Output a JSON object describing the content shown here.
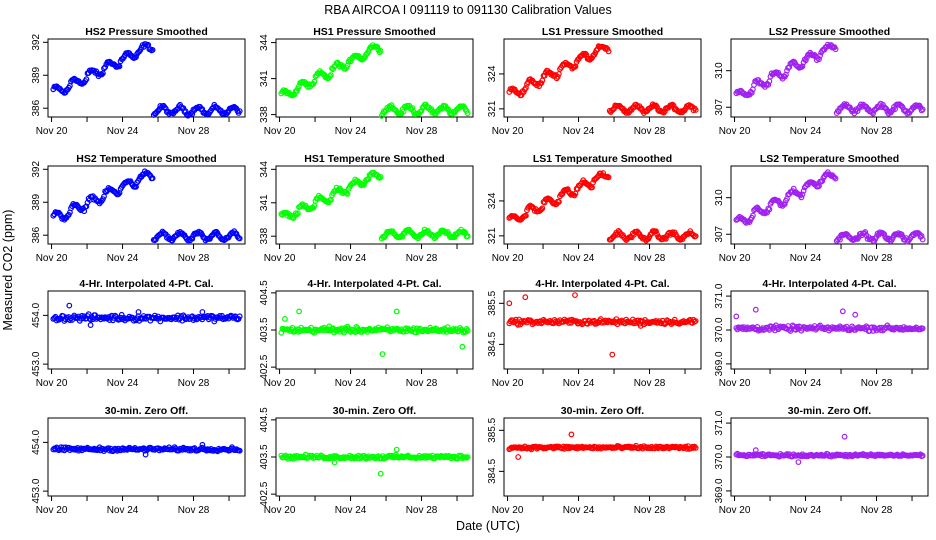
{
  "figure": {
    "title": "RBA   AIRCOA I    091119 to 091130    Calibration Values",
    "xlabel": "Date (UTC)",
    "ylabel": "Measured CO2 (ppm)"
  },
  "chart_data": [
    {
      "type": "scatter",
      "title": "HS2 Pressure Smoothed",
      "color": "#0000ff",
      "shape": "step",
      "ylim": [
        385.2,
        392.3
      ],
      "yticks": [
        386,
        389,
        392
      ],
      "ytick_labels": [
        "386",
        "389",
        "392"
      ],
      "xlim": [
        19.8,
        30.9
      ],
      "xticks": [
        20,
        24,
        28
      ],
      "xtick_labels": [
        "Nov 20",
        "Nov 24",
        "Nov 28"
      ],
      "series": [
        {
          "name": "HS2 Pressure Smoothed",
          "x_range": [
            20.1,
            30.6
          ],
          "level_start": 387.5,
          "level_end": 391.6,
          "rise_end": 25.7,
          "level_after": 385.8,
          "amplitude": 0.35,
          "noise": 0.15
        }
      ]
    },
    {
      "type": "scatter",
      "title": "HS1 Pressure Smoothed",
      "color": "#00ff00",
      "shape": "step",
      "ylim": [
        337.8,
        344.3
      ],
      "yticks": [
        338,
        341,
        344
      ],
      "ytick_labels": [
        "338",
        "341",
        "344"
      ],
      "xlim": [
        19.8,
        30.9
      ],
      "xticks": [
        20,
        24,
        28
      ],
      "xtick_labels": [
        "Nov 20",
        "Nov 24",
        "Nov 28"
      ],
      "series": [
        {
          "name": "HS1 Pressure Smoothed",
          "x_range": [
            20.1,
            30.6
          ],
          "level_start": 339.6,
          "level_end": 343.6,
          "rise_end": 25.7,
          "level_after": 338.4,
          "amplitude": 0.3,
          "noise": 0.15
        }
      ]
    },
    {
      "type": "scatter",
      "title": "LS1 Pressure Smoothed",
      "color": "#ff0000",
      "shape": "step",
      "ylim": [
        320.3,
        327.0
      ],
      "yticks": [
        321,
        324
      ],
      "ytick_labels": [
        "321",
        "324"
      ],
      "xlim": [
        19.8,
        30.9
      ],
      "xticks": [
        20,
        24,
        28
      ],
      "xtick_labels": [
        "Nov 20",
        "Nov 24",
        "Nov 28"
      ],
      "series": [
        {
          "name": "LS1 Pressure Smoothed",
          "x_range": [
            20.1,
            30.6
          ],
          "level_start": 322.3,
          "level_end": 326.3,
          "rise_end": 25.7,
          "level_after": 321.0,
          "amplitude": 0.3,
          "noise": 0.15
        }
      ]
    },
    {
      "type": "scatter",
      "title": "LS2 Pressure Smoothed",
      "color": "#a020f0",
      "shape": "step",
      "ylim": [
        306.2,
        312.6
      ],
      "yticks": [
        307,
        310
      ],
      "ytick_labels": [
        "307",
        "310"
      ],
      "xlim": [
        19.8,
        30.9
      ],
      "xticks": [
        20,
        24,
        28
      ],
      "xtick_labels": [
        "Nov 20",
        "Nov 24",
        "Nov 28"
      ],
      "series": [
        {
          "name": "LS2 Pressure Smoothed",
          "x_range": [
            20.1,
            30.6
          ],
          "level_start": 308.0,
          "level_end": 312.0,
          "rise_end": 25.7,
          "level_after": 306.9,
          "amplitude": 0.3,
          "noise": 0.15
        }
      ]
    },
    {
      "type": "scatter",
      "title": "HS2 Temperature Smoothed",
      "color": "#0000ff",
      "shape": "step",
      "ylim": [
        385.2,
        392.3
      ],
      "yticks": [
        386,
        389,
        392
      ],
      "ytick_labels": [
        "386",
        "389",
        "392"
      ],
      "xlim": [
        19.8,
        30.9
      ],
      "xticks": [
        20,
        24,
        28
      ],
      "xtick_labels": [
        "Nov 20",
        "Nov 24",
        "Nov 28"
      ],
      "series": [
        {
          "name": "HS2 Temperature Smoothed",
          "x_range": [
            20.1,
            30.6
          ],
          "level_start": 387.6,
          "level_end": 391.5,
          "rise_end": 25.7,
          "level_after": 385.9,
          "amplitude": 0.35,
          "noise": 0.15
        }
      ]
    },
    {
      "type": "scatter",
      "title": "HS1 Temperature Smoothed",
      "color": "#00ff00",
      "shape": "step",
      "ylim": [
        337.3,
        344.3
      ],
      "yticks": [
        338,
        341,
        344
      ],
      "ytick_labels": [
        "338",
        "341",
        "344"
      ],
      "xlim": [
        19.8,
        30.9
      ],
      "xticks": [
        20,
        24,
        28
      ],
      "xtick_labels": [
        "Nov 20",
        "Nov 24",
        "Nov 28"
      ],
      "series": [
        {
          "name": "HS1 Temperature Smoothed",
          "x_range": [
            20.1,
            30.6
          ],
          "level_start": 339.7,
          "level_end": 343.5,
          "rise_end": 25.7,
          "level_after": 338.2,
          "amplitude": 0.3,
          "noise": 0.15
        }
      ]
    },
    {
      "type": "scatter",
      "title": "LS1 Temperature Smoothed",
      "color": "#ff0000",
      "shape": "step",
      "ylim": [
        320.3,
        327.0
      ],
      "yticks": [
        321,
        324
      ],
      "ytick_labels": [
        "321",
        "324"
      ],
      "xlim": [
        19.8,
        30.9
      ],
      "xticks": [
        20,
        24,
        28
      ],
      "xtick_labels": [
        "Nov 20",
        "Nov 24",
        "Nov 28"
      ],
      "series": [
        {
          "name": "LS1 Temperature Smoothed",
          "x_range": [
            20.1,
            30.6
          ],
          "level_start": 322.4,
          "level_end": 326.2,
          "rise_end": 25.7,
          "level_after": 321.0,
          "amplitude": 0.3,
          "noise": 0.15
        }
      ]
    },
    {
      "type": "scatter",
      "title": "LS2 Temperature Smoothed",
      "color": "#a020f0",
      "shape": "step",
      "ylim": [
        306.2,
        312.6
      ],
      "yticks": [
        307,
        310
      ],
      "ytick_labels": [
        "307",
        "310"
      ],
      "xlim": [
        19.8,
        30.9
      ],
      "xticks": [
        20,
        24,
        28
      ],
      "xtick_labels": [
        "Nov 20",
        "Nov 24",
        "Nov 28"
      ],
      "series": [
        {
          "name": "LS2 Temperature Smoothed",
          "x_range": [
            20.1,
            30.6
          ],
          "level_start": 308.0,
          "level_end": 311.9,
          "rise_end": 25.7,
          "level_after": 306.8,
          "amplitude": 0.3,
          "noise": 0.15
        }
      ]
    },
    {
      "type": "scatter",
      "title": "4-Hr. Interpolated 4-Pt. Cal.",
      "color": "#0000ff",
      "shape": "flat",
      "ylim": [
        452.9,
        454.5
      ],
      "yticks": [
        453.0,
        454.0
      ],
      "ytick_labels": [
        "453.0",
        "454.0"
      ],
      "xlim": [
        19.8,
        30.9
      ],
      "xticks": [
        20,
        24,
        28
      ],
      "xtick_labels": [
        "Nov 20",
        "Nov 24",
        "Nov 28"
      ],
      "series": [
        {
          "name": "4-Hr. Interpolated 4-Pt. Cal.",
          "x_range": [
            20.1,
            30.6
          ],
          "level": 453.95,
          "noise": 0.05,
          "outliers": [
            [
              21.0,
              454.2
            ],
            [
              22.2,
              453.8
            ],
            [
              24.9,
              454.07
            ],
            [
              28.5,
              454.07
            ]
          ]
        }
      ]
    },
    {
      "type": "scatter",
      "title": "4-Hr. Interpolated 4-Pt. Cal.",
      "color": "#00ff00",
      "shape": "flat",
      "ylim": [
        402.45,
        404.55
      ],
      "yticks": [
        402.5,
        403.5,
        404.5
      ],
      "ytick_labels": [
        "402.5",
        "403.5",
        "404.5"
      ],
      "xlim": [
        19.8,
        30.9
      ],
      "xticks": [
        20,
        24,
        28
      ],
      "xtick_labels": [
        "Nov 20",
        "Nov 24",
        "Nov 28"
      ],
      "series": [
        {
          "name": "4-Hr. Interpolated 4-Pt. Cal.",
          "x_range": [
            20.1,
            30.6
          ],
          "level": 403.5,
          "noise": 0.06,
          "outliers": [
            [
              20.3,
              403.8
            ],
            [
              21.1,
              404.0
            ],
            [
              22.8,
              403.6
            ],
            [
              24.4,
              403.55
            ],
            [
              25.8,
              402.85
            ],
            [
              26.6,
              404.0
            ],
            [
              30.3,
              403.05
            ]
          ]
        }
      ]
    },
    {
      "type": "scatter",
      "title": "4-Hr. Interpolated 4-Pt. Cal.",
      "color": "#ff0000",
      "shape": "flat",
      "ylim": [
        383.9,
        385.8
      ],
      "yticks": [
        384.5,
        385.5
      ],
      "ytick_labels": [
        "384.5",
        "385.5"
      ],
      "xlim": [
        19.8,
        30.9
      ],
      "xticks": [
        20,
        24,
        28
      ],
      "xtick_labels": [
        "Nov 20",
        "Nov 24",
        "Nov 28"
      ],
      "series": [
        {
          "name": "4-Hr. Interpolated 4-Pt. Cal.",
          "x_range": [
            20.1,
            30.6
          ],
          "level": 385.05,
          "noise": 0.05,
          "outliers": [
            [
              20.1,
              385.5
            ],
            [
              21.0,
              385.65
            ],
            [
              23.8,
              385.7
            ],
            [
              25.9,
              384.25
            ],
            [
              27.5,
              384.95
            ]
          ]
        }
      ]
    },
    {
      "type": "scatter",
      "title": "4-Hr. Interpolated 4-Pt. Cal.",
      "color": "#a020f0",
      "shape": "flat",
      "ylim": [
        368.85,
        371.15
      ],
      "yticks": [
        369.0,
        370.0,
        371.0
      ],
      "ytick_labels": [
        "369.0",
        "370.0",
        "371.0"
      ],
      "xlim": [
        19.8,
        30.9
      ],
      "xticks": [
        20,
        24,
        28
      ],
      "xtick_labels": [
        "Nov 20",
        "Nov 24",
        "Nov 28"
      ],
      "series": [
        {
          "name": "4-Hr. Interpolated 4-Pt. Cal.",
          "x_range": [
            20.1,
            30.6
          ],
          "level": 370.05,
          "noise": 0.06,
          "outliers": [
            [
              20.1,
              370.4
            ],
            [
              21.2,
              370.6
            ],
            [
              23.5,
              370.1
            ],
            [
              26.1,
              370.55
            ],
            [
              26.8,
              370.45
            ]
          ]
        }
      ]
    },
    {
      "type": "scatter",
      "title": "30-min. Zero Off.",
      "color": "#0000ff",
      "shape": "flat",
      "ylim": [
        452.9,
        454.5
      ],
      "yticks": [
        453.0,
        454.0
      ],
      "ytick_labels": [
        "453.0",
        "454.0"
      ],
      "xlim": [
        19.8,
        30.9
      ],
      "xticks": [
        20,
        24,
        28
      ],
      "xtick_labels": [
        "Nov 20",
        "Nov 24",
        "Nov 28"
      ],
      "series": [
        {
          "name": "30-min. Zero Off.",
          "x_range": [
            20.1,
            30.6
          ],
          "level": 453.86,
          "noise": 0.03,
          "outliers": [
            [
              25.3,
              453.75
            ],
            [
              28.5,
              453.95
            ]
          ]
        }
      ]
    },
    {
      "type": "scatter",
      "title": "30-min. Zero Off.",
      "color": "#00ff00",
      "shape": "flat",
      "ylim": [
        402.45,
        404.55
      ],
      "yticks": [
        402.5,
        403.5,
        404.5
      ],
      "ytick_labels": [
        "402.5",
        "403.5",
        "404.5"
      ],
      "xlim": [
        19.8,
        30.9
      ],
      "xticks": [
        20,
        24,
        28
      ],
      "xtick_labels": [
        "Nov 20",
        "Nov 24",
        "Nov 28"
      ],
      "series": [
        {
          "name": "30-min. Zero Off.",
          "x_range": [
            20.1,
            30.6
          ],
          "level": 403.5,
          "noise": 0.04,
          "outliers": [
            [
              23.1,
              403.35
            ],
            [
              25.7,
              403.05
            ],
            [
              26.6,
              403.7
            ]
          ]
        }
      ]
    },
    {
      "type": "scatter",
      "title": "30-min. Zero Off.",
      "color": "#ff0000",
      "shape": "flat",
      "ylim": [
        383.9,
        385.8
      ],
      "yticks": [
        384.5,
        385.5
      ],
      "ytick_labels": [
        "384.5",
        "385.5"
      ],
      "xlim": [
        19.8,
        30.9
      ],
      "xticks": [
        20,
        24,
        28
      ],
      "xtick_labels": [
        "Nov 20",
        "Nov 24",
        "Nov 28"
      ],
      "series": [
        {
          "name": "30-min. Zero Off.",
          "x_range": [
            20.1,
            30.6
          ],
          "level": 385.08,
          "noise": 0.03,
          "outliers": [
            [
              20.6,
              384.85
            ],
            [
              23.6,
              385.4
            ]
          ]
        }
      ]
    },
    {
      "type": "scatter",
      "title": "30-min. Zero Off.",
      "color": "#a020f0",
      "shape": "flat",
      "ylim": [
        368.85,
        371.15
      ],
      "yticks": [
        369.0,
        370.0,
        371.0
      ],
      "ytick_labels": [
        "369.0",
        "370.0",
        "371.0"
      ],
      "xlim": [
        19.8,
        30.9
      ],
      "xticks": [
        20,
        24,
        28
      ],
      "xtick_labels": [
        "Nov 20",
        "Nov 24",
        "Nov 28"
      ],
      "series": [
        {
          "name": "30-min. Zero Off.",
          "x_range": [
            20.1,
            30.6
          ],
          "level": 370.05,
          "noise": 0.03,
          "outliers": [
            [
              21.2,
              370.2
            ],
            [
              23.6,
              369.85
            ],
            [
              26.2,
              370.6
            ]
          ]
        }
      ]
    }
  ]
}
